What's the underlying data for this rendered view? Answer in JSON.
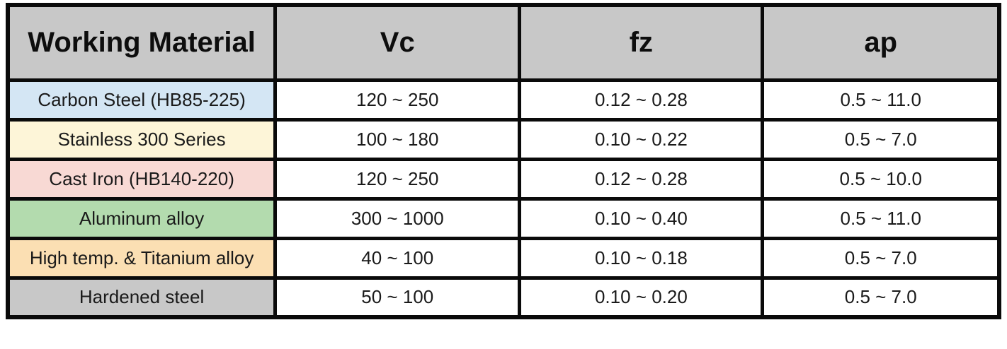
{
  "table": {
    "name": "milling-cutting-conditions",
    "columns": [
      {
        "key": "material",
        "label": "Working Material"
      },
      {
        "key": "vc",
        "label": "Vc"
      },
      {
        "key": "fz",
        "label": "fz"
      },
      {
        "key": "ap",
        "label": "ap"
      }
    ],
    "rows": [
      {
        "material": "Carbon Steel (HB85-225)",
        "vc": "120 ~ 250",
        "fz": "0.12 ~ 0.28",
        "ap": "0.5 ~ 11.0",
        "color": "#d4e6f4"
      },
      {
        "material": "Stainless 300 Series",
        "vc": "100 ~ 180",
        "fz": "0.10 ~ 0.22",
        "ap": "0.5 ~ 7.0",
        "color": "#fdf5d8"
      },
      {
        "material": "Cast Iron (HB140-220)",
        "vc": "120 ~ 250",
        "fz": "0.12 ~ 0.28",
        "ap": "0.5 ~ 10.0",
        "color": "#f8d9d4"
      },
      {
        "material": "Aluminum alloy",
        "vc": "300 ~ 1000",
        "fz": "0.10 ~ 0.40",
        "ap": "0.5 ~ 11.0",
        "color": "#b3dbae"
      },
      {
        "material": "High temp. & Titanium alloy",
        "vc": "40 ~ 100",
        "fz": "0.10 ~ 0.18",
        "ap": "0.5 ~ 7.0",
        "color": "#fbdfb3"
      },
      {
        "material": "Hardened steel",
        "vc": "50 ~ 100",
        "fz": "0.10 ~ 0.20",
        "ap": "0.5 ~ 7.0",
        "color": "#c8c8c8"
      }
    ]
  },
  "colors": {
    "header_bg": "#c8c8c8",
    "border": "#0a0a0a",
    "row_carbon_steel": "#d4e6f4",
    "row_stainless": "#fdf5d8",
    "row_cast_iron": "#f8d9d4",
    "row_aluminum": "#b3dbae",
    "row_high_temp_titanium": "#fbdfb3",
    "row_hardened_steel": "#c8c8c8"
  }
}
